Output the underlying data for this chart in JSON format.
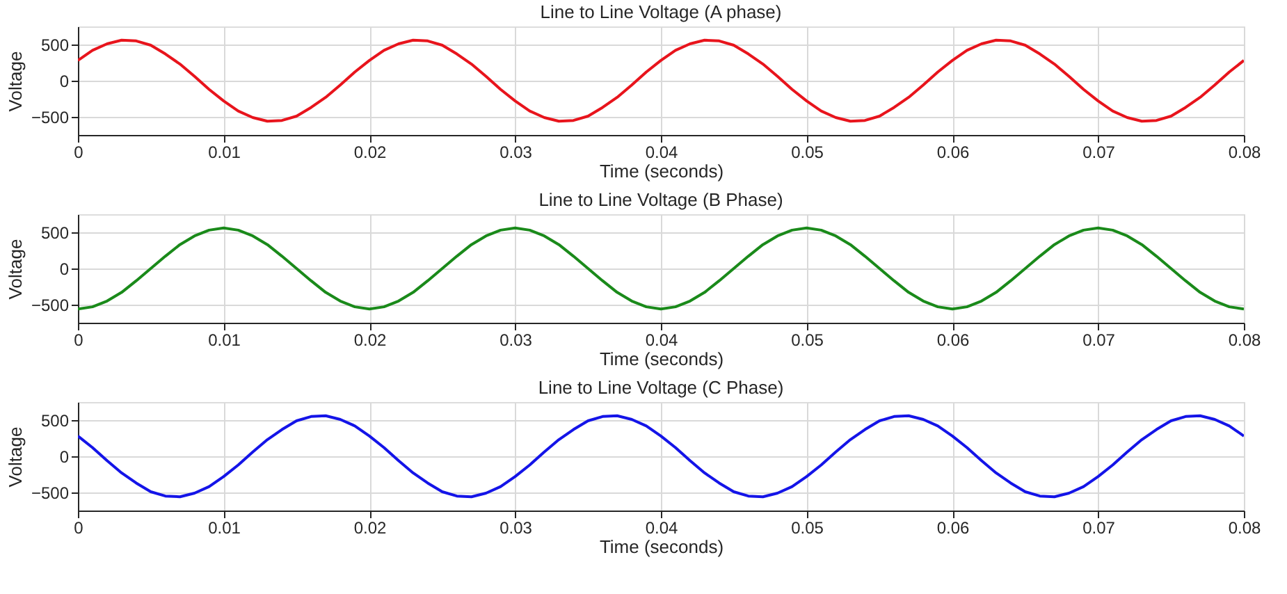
{
  "chart_data": [
    {
      "type": "line",
      "title": "Line to Line Voltage (A phase)",
      "xlabel": "Time (seconds)",
      "ylabel": "Voltage",
      "xlim": [
        0,
        0.08
      ],
      "xticks": [
        0,
        0.01,
        0.02,
        0.03,
        0.04,
        0.05,
        0.06,
        0.07,
        0.08
      ],
      "ylim": [
        -750,
        750
      ],
      "yticks": [
        -500,
        0,
        500
      ],
      "grid": true,
      "x": [
        0,
        0.001,
        0.002,
        0.003,
        0.004,
        0.005,
        0.006,
        0.007,
        0.008,
        0.009,
        0.01,
        0.011,
        0.012,
        0.013,
        0.014,
        0.015,
        0.016,
        0.017,
        0.018,
        0.019,
        0.02,
        0.021,
        0.022,
        0.023,
        0.024,
        0.025,
        0.026,
        0.027,
        0.028,
        0.029,
        0.03,
        0.031,
        0.032,
        0.033,
        0.034,
        0.035,
        0.036,
        0.037,
        0.038,
        0.039,
        0.04,
        0.041,
        0.042,
        0.043,
        0.044,
        0.045,
        0.046,
        0.047,
        0.048,
        0.049,
        0.05,
        0.051,
        0.052,
        0.053,
        0.054,
        0.055,
        0.056,
        0.057,
        0.058,
        0.059,
        0.06,
        0.061,
        0.062,
        0.063,
        0.064,
        0.065,
        0.066,
        0.067,
        0.068,
        0.069,
        0.07,
        0.071,
        0.072,
        0.073,
        0.074,
        0.075,
        0.076,
        0.077,
        0.078,
        0.079,
        0.08
      ],
      "series": [
        {
          "color": "#e8141c",
          "values": [
            280,
            420,
            510,
            560,
            550,
            490,
            370,
            230,
            60,
            -120,
            -280,
            -420,
            -510,
            -560,
            -550,
            -490,
            -370,
            -230,
            -60,
            120,
            280,
            420,
            510,
            560,
            550,
            490,
            370,
            230,
            60,
            -120,
            -280,
            -420,
            -510,
            -560,
            -550,
            -490,
            -370,
            -230,
            -60,
            120,
            280,
            420,
            510,
            560,
            550,
            490,
            370,
            230,
            60,
            -120,
            -280,
            -420,
            -510,
            -560,
            -550,
            -490,
            -370,
            -230,
            -60,
            120,
            280,
            420,
            510,
            560,
            550,
            490,
            370,
            230,
            60,
            -120,
            -280,
            -420,
            -510,
            -560,
            -550,
            -490,
            -370,
            -230,
            -60,
            120,
            280
          ]
        }
      ]
    },
    {
      "type": "line",
      "title": "Line to Line Voltage (B Phase)",
      "xlabel": "Time (seconds)",
      "ylabel": "Voltage",
      "xlim": [
        0,
        0.08
      ],
      "xticks": [
        0,
        0.01,
        0.02,
        0.03,
        0.04,
        0.05,
        0.06,
        0.07,
        0.08
      ],
      "ylim": [
        -750,
        750
      ],
      "yticks": [
        -500,
        0,
        500
      ],
      "grid": true,
      "x": [
        0,
        0.001,
        0.002,
        0.003,
        0.004,
        0.005,
        0.006,
        0.007,
        0.008,
        0.009,
        0.01,
        0.011,
        0.012,
        0.013,
        0.014,
        0.015,
        0.016,
        0.017,
        0.018,
        0.019,
        0.02,
        0.021,
        0.022,
        0.023,
        0.024,
        0.025,
        0.026,
        0.027,
        0.028,
        0.029,
        0.03,
        0.031,
        0.032,
        0.033,
        0.034,
        0.035,
        0.036,
        0.037,
        0.038,
        0.039,
        0.04,
        0.041,
        0.042,
        0.043,
        0.044,
        0.045,
        0.046,
        0.047,
        0.048,
        0.049,
        0.05,
        0.051,
        0.052,
        0.053,
        0.054,
        0.055,
        0.056,
        0.057,
        0.058,
        0.059,
        0.06,
        0.061,
        0.062,
        0.063,
        0.064,
        0.065,
        0.066,
        0.067,
        0.068,
        0.069,
        0.07,
        0.071,
        0.072,
        0.073,
        0.074,
        0.075,
        0.076,
        0.077,
        0.078,
        0.079,
        0.08
      ],
      "series": [
        {
          "color": "#1a8a1a",
          "values": [
            -560,
            -530,
            -450,
            -330,
            -170,
            0,
            170,
            330,
            450,
            530,
            560,
            530,
            450,
            330,
            170,
            0,
            -170,
            -330,
            -450,
            -530,
            -560,
            -530,
            -450,
            -330,
            -170,
            0,
            170,
            330,
            450,
            530,
            560,
            530,
            450,
            330,
            170,
            0,
            -170,
            -330,
            -450,
            -530,
            -560,
            -530,
            -450,
            -330,
            -170,
            0,
            170,
            330,
            450,
            530,
            560,
            530,
            450,
            330,
            170,
            0,
            -170,
            -330,
            -450,
            -530,
            -560,
            -530,
            -450,
            -330,
            -170,
            0,
            170,
            330,
            450,
            530,
            560,
            530,
            450,
            330,
            170,
            0,
            -170,
            -330,
            -450,
            -530,
            -560
          ]
        }
      ]
    },
    {
      "type": "line",
      "title": "Line to Line Voltage (C Phase)",
      "xlabel": "Time (seconds)",
      "ylabel": "Voltage",
      "xlim": [
        0,
        0.08
      ],
      "xticks": [
        0,
        0.01,
        0.02,
        0.03,
        0.04,
        0.05,
        0.06,
        0.07,
        0.08
      ],
      "ylim": [
        -750,
        750
      ],
      "yticks": [
        -500,
        0,
        500
      ],
      "grid": true,
      "x": [
        0,
        0.001,
        0.002,
        0.003,
        0.004,
        0.005,
        0.006,
        0.007,
        0.008,
        0.009,
        0.01,
        0.011,
        0.012,
        0.013,
        0.014,
        0.015,
        0.016,
        0.017,
        0.018,
        0.019,
        0.02,
        0.021,
        0.022,
        0.023,
        0.024,
        0.025,
        0.026,
        0.027,
        0.028,
        0.029,
        0.03,
        0.031,
        0.032,
        0.033,
        0.034,
        0.035,
        0.036,
        0.037,
        0.038,
        0.039,
        0.04,
        0.041,
        0.042,
        0.043,
        0.044,
        0.045,
        0.046,
        0.047,
        0.048,
        0.049,
        0.05,
        0.051,
        0.052,
        0.053,
        0.054,
        0.055,
        0.056,
        0.057,
        0.058,
        0.059,
        0.06,
        0.061,
        0.062,
        0.063,
        0.064,
        0.065,
        0.066,
        0.067,
        0.068,
        0.069,
        0.07,
        0.071,
        0.072,
        0.073,
        0.074,
        0.075,
        0.076,
        0.077,
        0.078,
        0.079,
        0.08
      ],
      "series": [
        {
          "color": "#1414e8",
          "values": [
            280,
            120,
            -60,
            -230,
            -370,
            -490,
            -550,
            -560,
            -510,
            -420,
            -280,
            -120,
            60,
            230,
            370,
            490,
            550,
            560,
            510,
            420,
            280,
            120,
            -60,
            -230,
            -370,
            -490,
            -550,
            -560,
            -510,
            -420,
            -280,
            -120,
            60,
            230,
            370,
            490,
            550,
            560,
            510,
            420,
            280,
            120,
            -60,
            -230,
            -370,
            -490,
            -550,
            -560,
            -510,
            -420,
            -280,
            -120,
            60,
            230,
            370,
            490,
            550,
            560,
            510,
            420,
            280,
            120,
            -60,
            -230,
            -370,
            -490,
            -550,
            -560,
            -510,
            -420,
            -280,
            -120,
            60,
            230,
            370,
            490,
            550,
            560,
            510,
            420,
            280
          ]
        }
      ]
    }
  ]
}
